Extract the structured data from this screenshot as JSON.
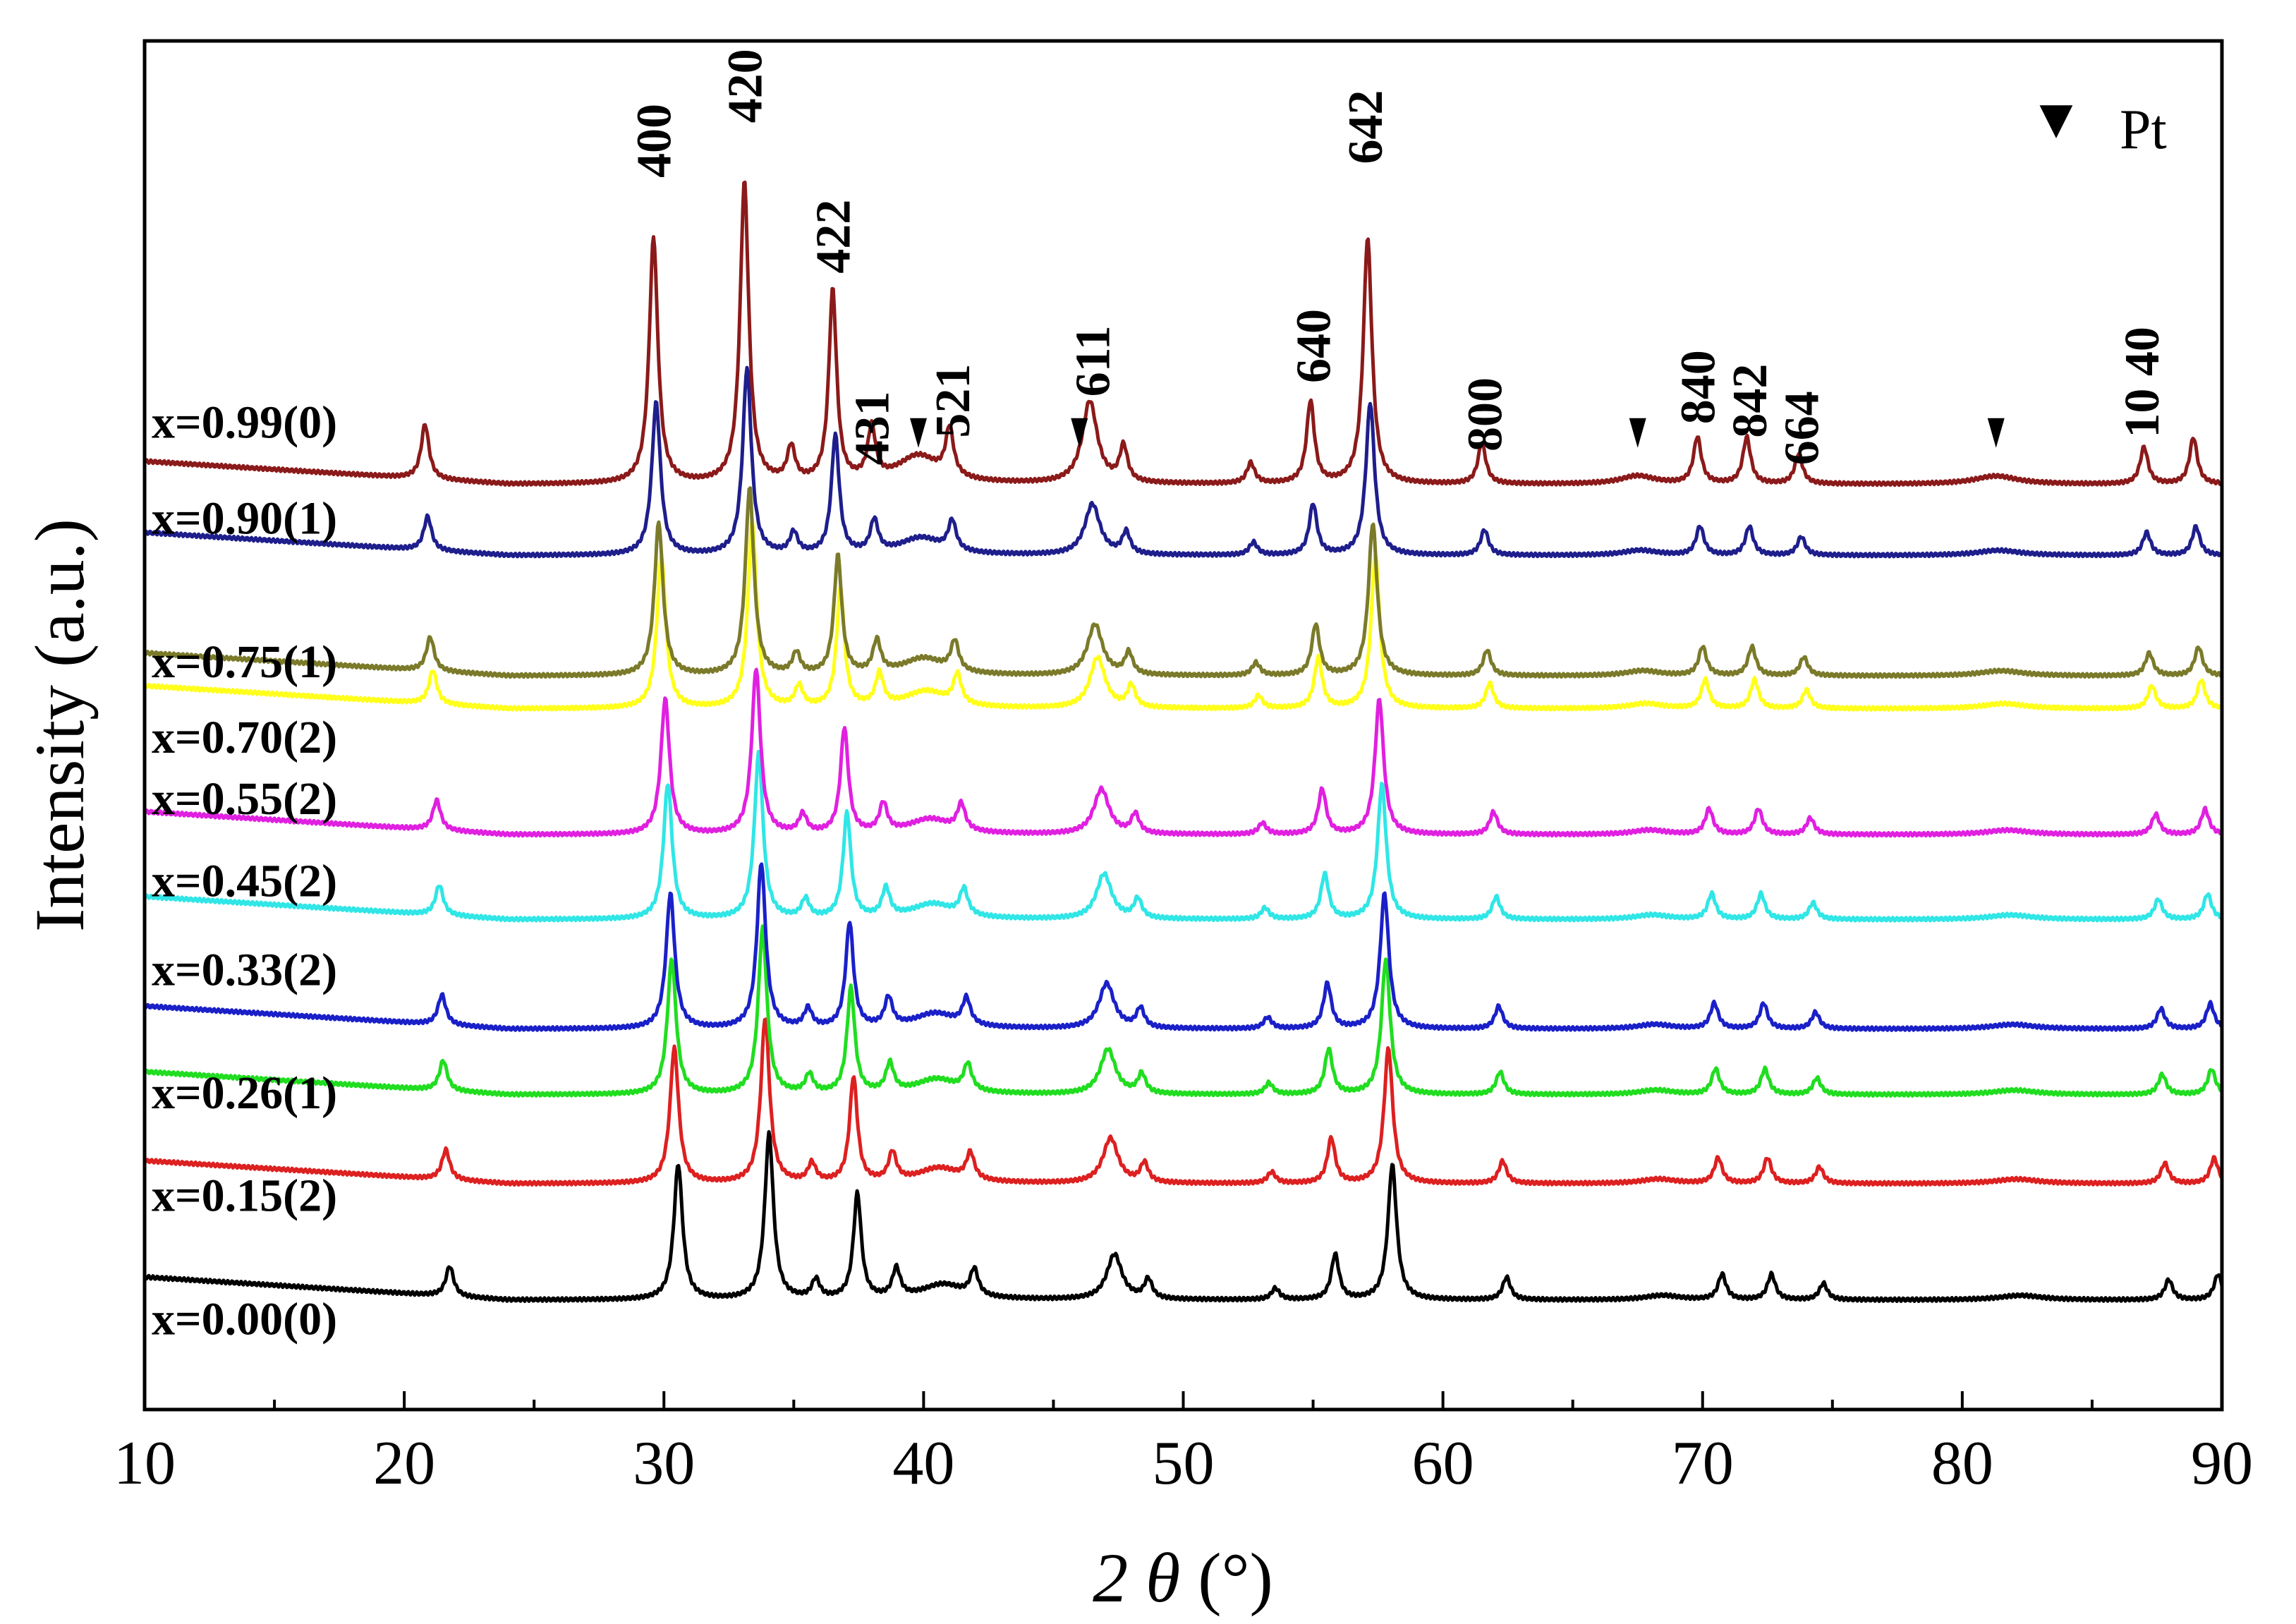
{
  "chart_data": {
    "type": "line",
    "title": "",
    "xlabel": "2 θ (°)",
    "xlabel_parts": {
      "prefix": "2 ",
      "symbol": "θ",
      "unit": " (°)"
    },
    "ylabel": "Intensity (a.u.)",
    "xlim": [
      10,
      90
    ],
    "ylim": [
      0,
      100
    ],
    "x_ticks": [
      10,
      20,
      30,
      40,
      50,
      60,
      70,
      80,
      90
    ],
    "x_tick_labels": [
      "10",
      "20",
      "30",
      "40",
      "50",
      "60",
      "70",
      "80",
      "90"
    ],
    "x_minor_step": 5,
    "grid": false,
    "legend": {
      "symbol": "▼",
      "label": "Pt",
      "placement": "top-right"
    },
    "pt_markers_x": [
      39.8,
      46.0,
      67.5,
      81.3
    ],
    "reflections": [
      {
        "label": "400",
        "x": 29.6,
        "top": 90
      },
      {
        "label": "420",
        "x": 33.1,
        "top": 94
      },
      {
        "label": "422",
        "x": 36.5,
        "top": 83
      },
      {
        "label": "431",
        "x": 38.0,
        "top": 69
      },
      {
        "label": "521",
        "x": 41.1,
        "top": 71
      },
      {
        "label": "611",
        "x": 46.5,
        "top": 74
      },
      {
        "label": "640",
        "x": 55.0,
        "top": 75
      },
      {
        "label": "642",
        "x": 57.0,
        "top": 91
      },
      {
        "label": "800",
        "x": 61.6,
        "top": 70
      },
      {
        "label": "840",
        "x": 69.8,
        "top": 72
      },
      {
        "label": "842",
        "x": 71.8,
        "top": 71
      },
      {
        "label": "664",
        "x": 73.8,
        "top": 69
      },
      {
        "label": "10 40",
        "x": 86.9,
        "top": 71
      }
    ],
    "series": [
      {
        "name": "x=0.99(0)",
        "color": "#8b1a1a",
        "baseline": 67.6,
        "shift": 0.0,
        "scale": 1.0,
        "label_y": 71
      },
      {
        "name": "x=0.90(1)",
        "color": "#1e1e8c",
        "baseline": 62.4,
        "shift": 0.1,
        "scale": 0.62,
        "label_y": 64
      },
      {
        "name": "x=0.75(1)",
        "color": "#7a7a2a",
        "baseline": 53.6,
        "shift": 0.2,
        "scale": 0.62,
        "label_y": 53.5
      },
      {
        "name": "x=0.70(2)",
        "color": "#ffff1a",
        "baseline": 51.2,
        "shift": 0.3,
        "scale": 0.62,
        "label_y": 48
      },
      {
        "name": "x=0.55(2)",
        "color": "#e020e0",
        "baseline": 42.0,
        "shift": 0.45,
        "scale": 0.55,
        "label_y": 43.5
      },
      {
        "name": "x=0.45(2)",
        "color": "#30e6e6",
        "baseline": 35.8,
        "shift": 0.55,
        "scale": 0.55,
        "label_y": 37.5
      },
      {
        "name": "x=0.33(2)",
        "color": "#1a20c8",
        "baseline": 27.8,
        "shift": 0.65,
        "scale": 0.55,
        "label_y": 31
      },
      {
        "name": "x=0.26(1)",
        "color": "#20dd20",
        "baseline": 23.0,
        "shift": 0.7,
        "scale": 0.55,
        "label_y": 22
      },
      {
        "name": "x=0.15(2)",
        "color": "#dd2020",
        "baseline": 16.5,
        "shift": 0.8,
        "scale": 0.55,
        "label_y": 14.5
      },
      {
        "name": "x=0.00(0)",
        "color": "#000000",
        "baseline": 8.0,
        "shift": 0.95,
        "scale": 0.55,
        "label_y": 5.5
      }
    ],
    "peaks": [
      {
        "x": 20.8,
        "h": 4.0,
        "w": 0.18
      },
      {
        "x": 29.6,
        "h": 18.0,
        "w": 0.2
      },
      {
        "x": 33.1,
        "h": 22.0,
        "w": 0.2
      },
      {
        "x": 34.9,
        "h": 2.5,
        "w": 0.18
      },
      {
        "x": 36.5,
        "h": 14.0,
        "w": 0.18
      },
      {
        "x": 38.0,
        "h": 3.8,
        "w": 0.18
      },
      {
        "x": 39.8,
        "h": 2.0,
        "w": 1.0
      },
      {
        "x": 41.0,
        "h": 3.5,
        "w": 0.18
      },
      {
        "x": 46.4,
        "h": 6.0,
        "w": 0.35
      },
      {
        "x": 47.7,
        "h": 2.6,
        "w": 0.18
      },
      {
        "x": 52.6,
        "h": 1.5,
        "w": 0.18
      },
      {
        "x": 54.9,
        "h": 6.0,
        "w": 0.18
      },
      {
        "x": 57.1,
        "h": 18.0,
        "w": 0.2
      },
      {
        "x": 61.5,
        "h": 3.0,
        "w": 0.18
      },
      {
        "x": 67.5,
        "h": 0.6,
        "w": 0.8
      },
      {
        "x": 69.8,
        "h": 3.4,
        "w": 0.18
      },
      {
        "x": 71.7,
        "h": 3.4,
        "w": 0.18
      },
      {
        "x": 73.7,
        "h": 2.2,
        "w": 0.18
      },
      {
        "x": 81.3,
        "h": 0.6,
        "w": 1.0
      },
      {
        "x": 87.0,
        "h": 2.7,
        "w": 0.18
      },
      {
        "x": 88.9,
        "h": 3.4,
        "w": 0.18
      }
    ]
  }
}
